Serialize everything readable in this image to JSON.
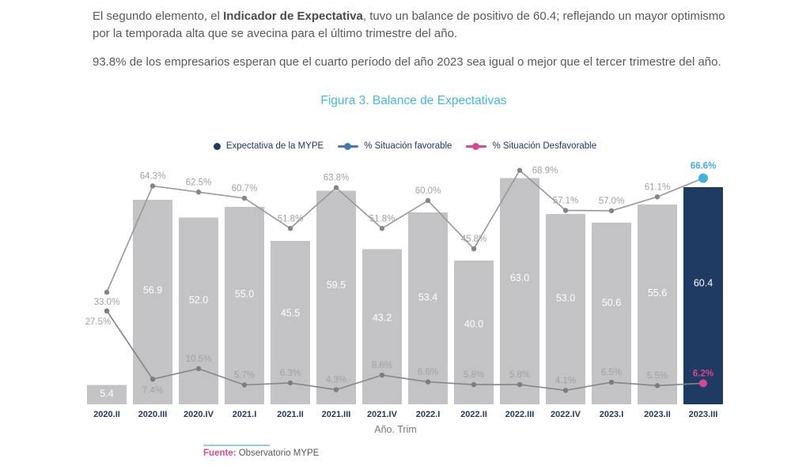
{
  "page": {
    "paragraph1_prefix": "El segundo elemento, el ",
    "paragraph1_bold": "Indicador de Expectativa",
    "paragraph1_suffix": ", tuvo un balance de positivo de 60.4; reflejando un mayor optimismo por la temporada alta que se avecina para el último trimestre del año.",
    "paragraph2": "93.8% de los empresarios esperan que el cuarto período del año 2023 sea igual o mejor que el tercer trimestre del año.",
    "figure_title": "Figura 3. Balance de Expectativas",
    "source_label": "Fuente:",
    "source_value": " Observatorio MYPE"
  },
  "legend": {
    "items": [
      {
        "label": "Expectativa de la MYPE",
        "marker": "dot",
        "color": "#1f3a63"
      },
      {
        "label": "% Situación favorable",
        "marker": "line-dot",
        "color": "#4577b5"
      },
      {
        "label": "% Situación Desfavorable",
        "marker": "line-dot",
        "color": "#d6488f"
      }
    ]
  },
  "chart_data": {
    "type": "bar",
    "title": "Figura 3. Balance de Expectativas",
    "xlabel": "Año. Trim",
    "ylim": [
      0,
      75
    ],
    "grid": false,
    "legend_position": "top",
    "categories": [
      "2020.II",
      "2020.III",
      "2020.IV",
      "2021.I",
      "2021.II",
      "2021.III",
      "2021.IV",
      "2022.I",
      "2022.II",
      "2022.III",
      "2022.IV",
      "2023.I",
      "2023.II",
      "2023.III"
    ],
    "series": [
      {
        "name": "Expectativa de la MYPE",
        "type": "bar",
        "values": [
          5.4,
          56.9,
          52.0,
          55.0,
          45.5,
          59.5,
          43.2,
          53.4,
          40.0,
          63.0,
          53.0,
          50.6,
          55.6,
          60.4
        ],
        "color": "#c3c3c5",
        "highlight_index": 13,
        "highlight_color": "#1f3a63",
        "value_label_color": "#ffffff"
      },
      {
        "name": "% Situación favorable",
        "type": "line",
        "values": [
          33.0,
          64.3,
          62.5,
          60.7,
          51.8,
          63.8,
          51.8,
          60.0,
          45.8,
          68.9,
          57.1,
          57.0,
          61.1,
          66.6
        ],
        "color": "#969799",
        "marker_color": "#838587",
        "label_color": "#a0a1a3",
        "last_marker_color": "#45b0dd",
        "last_label_color": "#45b0dd",
        "label_offsets": {
          "0": [
            0,
            16
          ],
          "9": [
            32,
            4
          ],
          "13": [
            0,
            -12
          ]
        }
      },
      {
        "name": "% Situación Desfavorable",
        "type": "line",
        "values": [
          27.5,
          7.4,
          10.5,
          5.7,
          6.3,
          4.3,
          8.6,
          6.6,
          5.8,
          5.8,
          4.1,
          6.5,
          5.5,
          6.2
        ],
        "color": "#838587",
        "marker_color": "#7b7d7f",
        "label_color": "#a0a1a3",
        "last_marker_color": "#d6488f",
        "last_label_color": "#d6488f",
        "label_offsets": {
          "0": [
            -11,
            17
          ],
          "1": [
            0,
            18
          ]
        }
      }
    ]
  }
}
